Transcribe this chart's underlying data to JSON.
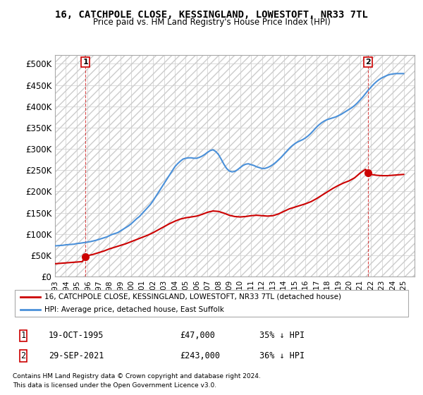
{
  "title": "16, CATCHPOLE CLOSE, KESSINGLAND, LOWESTOFT, NR33 7TL",
  "subtitle": "Price paid vs. HM Land Registry's House Price Index (HPI)",
  "ylabel": "",
  "background_color": "#ffffff",
  "plot_bg_color": "#ffffff",
  "grid_color": "#cccccc",
  "hatch_color": "#dddddd",
  "red_line_color": "#cc0000",
  "blue_line_color": "#4a90d9",
  "sale1_date": 1995.8,
  "sale1_price": 47000,
  "sale1_label": "1",
  "sale2_date": 2021.75,
  "sale2_price": 243000,
  "sale2_label": "2",
  "ylim": [
    0,
    520000
  ],
  "xlim": [
    1993,
    2026
  ],
  "yticks": [
    0,
    50000,
    100000,
    150000,
    200000,
    250000,
    300000,
    350000,
    400000,
    450000,
    500000
  ],
  "ytick_labels": [
    "£0",
    "£50K",
    "£100K",
    "£150K",
    "£200K",
    "£250K",
    "£300K",
    "£350K",
    "£400K",
    "£450K",
    "£500K"
  ],
  "xticks": [
    1993,
    1994,
    1995,
    1996,
    1997,
    1998,
    1999,
    2000,
    2001,
    2002,
    2003,
    2004,
    2005,
    2006,
    2007,
    2008,
    2009,
    2010,
    2011,
    2012,
    2013,
    2014,
    2015,
    2016,
    2017,
    2018,
    2019,
    2020,
    2021,
    2022,
    2023,
    2024,
    2025
  ],
  "legend_label_red": "16, CATCHPOLE CLOSE, KESSINGLAND, LOWESTOFT, NR33 7TL (detached house)",
  "legend_label_blue": "HPI: Average price, detached house, East Suffolk",
  "footer1": "Contains HM Land Registry data © Crown copyright and database right 2024.",
  "footer2": "This data is licensed under the Open Government Licence v3.0.",
  "annotation1": "1    19-OCT-1995         £47,000       35% ↓ HPI",
  "annotation2": "2    29-SEP-2021         £243,000     36% ↓ HPI",
  "hpi_years": [
    1993,
    1993.25,
    1993.5,
    1993.75,
    1994,
    1994.25,
    1994.5,
    1994.75,
    1995,
    1995.25,
    1995.5,
    1995.75,
    1996,
    1996.25,
    1996.5,
    1996.75,
    1997,
    1997.25,
    1997.5,
    1997.75,
    1998,
    1998.25,
    1998.5,
    1998.75,
    1999,
    1999.25,
    1999.5,
    1999.75,
    2000,
    2000.25,
    2000.5,
    2000.75,
    2001,
    2001.25,
    2001.5,
    2001.75,
    2002,
    2002.25,
    2002.5,
    2002.75,
    2003,
    2003.25,
    2003.5,
    2003.75,
    2004,
    2004.25,
    2004.5,
    2004.75,
    2005,
    2005.25,
    2005.5,
    2005.75,
    2006,
    2006.25,
    2006.5,
    2006.75,
    2007,
    2007.25,
    2007.5,
    2007.75,
    2008,
    2008.25,
    2008.5,
    2008.75,
    2009,
    2009.25,
    2009.5,
    2009.75,
    2010,
    2010.25,
    2010.5,
    2010.75,
    2011,
    2011.25,
    2011.5,
    2011.75,
    2012,
    2012.25,
    2012.5,
    2012.75,
    2013,
    2013.25,
    2013.5,
    2013.75,
    2014,
    2014.25,
    2014.5,
    2014.75,
    2015,
    2015.25,
    2015.5,
    2015.75,
    2016,
    2016.25,
    2016.5,
    2016.75,
    2017,
    2017.25,
    2017.5,
    2017.75,
    2018,
    2018.25,
    2018.5,
    2018.75,
    2019,
    2019.25,
    2019.5,
    2019.75,
    2020,
    2020.25,
    2020.5,
    2020.75,
    2021,
    2021.25,
    2021.5,
    2021.75,
    2022,
    2022.25,
    2022.5,
    2022.75,
    2023,
    2023.25,
    2023.5,
    2023.75,
    2024,
    2024.25,
    2024.5,
    2024.75,
    2025
  ],
  "hpi_values": [
    72000,
    72500,
    73000,
    73500,
    74500,
    75000,
    75500,
    76000,
    77500,
    78000,
    79000,
    80000,
    81000,
    82000,
    83500,
    85000,
    87000,
    89000,
    91000,
    93000,
    96000,
    99000,
    101000,
    103000,
    107000,
    111000,
    115000,
    119000,
    124000,
    130000,
    136000,
    141000,
    148000,
    155000,
    162000,
    169000,
    178000,
    188000,
    198000,
    208000,
    218000,
    228000,
    238000,
    248000,
    258000,
    265000,
    271000,
    276000,
    278000,
    279000,
    279000,
    278000,
    278000,
    280000,
    283000,
    287000,
    292000,
    296000,
    298000,
    294000,
    287000,
    276000,
    264000,
    254000,
    248000,
    246000,
    247000,
    251000,
    256000,
    261000,
    264000,
    265000,
    263000,
    261000,
    258000,
    256000,
    254000,
    254000,
    256000,
    259000,
    263000,
    268000,
    274000,
    280000,
    287000,
    294000,
    301000,
    307000,
    312000,
    316000,
    319000,
    322000,
    326000,
    331000,
    337000,
    344000,
    351000,
    357000,
    362000,
    366000,
    369000,
    371000,
    373000,
    375000,
    378000,
    381000,
    385000,
    389000,
    393000,
    397000,
    402000,
    408000,
    415000,
    422000,
    430000,
    438000,
    445000,
    452000,
    458000,
    463000,
    467000,
    470000,
    473000,
    475000,
    476000,
    477000,
    477000,
    477000,
    477000
  ],
  "red_years": [
    1993,
    1993.5,
    1994,
    1994.5,
    1995,
    1995.5,
    1995.8,
    1996,
    1996.5,
    1997,
    1997.5,
    1998,
    1998.5,
    1999,
    1999.5,
    2000,
    2000.5,
    2001,
    2001.5,
    2002,
    2002.5,
    2003,
    2003.5,
    2004,
    2004.5,
    2005,
    2005.5,
    2006,
    2006.5,
    2007,
    2007.5,
    2008,
    2008.5,
    2009,
    2009.5,
    2010,
    2010.5,
    2011,
    2011.5,
    2012,
    2012.5,
    2013,
    2013.5,
    2014,
    2014.5,
    2015,
    2015.5,
    2016,
    2016.5,
    2017,
    2017.5,
    2018,
    2018.5,
    2019,
    2019.5,
    2020,
    2020.5,
    2021,
    2021.5,
    2021.75,
    2022,
    2022.5,
    2023,
    2023.5,
    2024,
    2024.5,
    2025
  ],
  "red_values": [
    30000,
    31000,
    32000,
    33000,
    34000,
    35000,
    47000,
    49000,
    52000,
    56000,
    60000,
    65000,
    69000,
    73000,
    77000,
    82000,
    87000,
    92000,
    97000,
    103000,
    110000,
    117000,
    124000,
    130000,
    135000,
    138000,
    140000,
    142000,
    146000,
    151000,
    154000,
    153000,
    149000,
    144000,
    141000,
    140000,
    141000,
    143000,
    144000,
    143000,
    142000,
    143000,
    147000,
    153000,
    159000,
    163000,
    167000,
    171000,
    176000,
    183000,
    191000,
    199000,
    207000,
    214000,
    220000,
    225000,
    232000,
    243000,
    252000,
    243000,
    240000,
    238000,
    237000,
    237000,
    238000,
    239000,
    240000
  ]
}
